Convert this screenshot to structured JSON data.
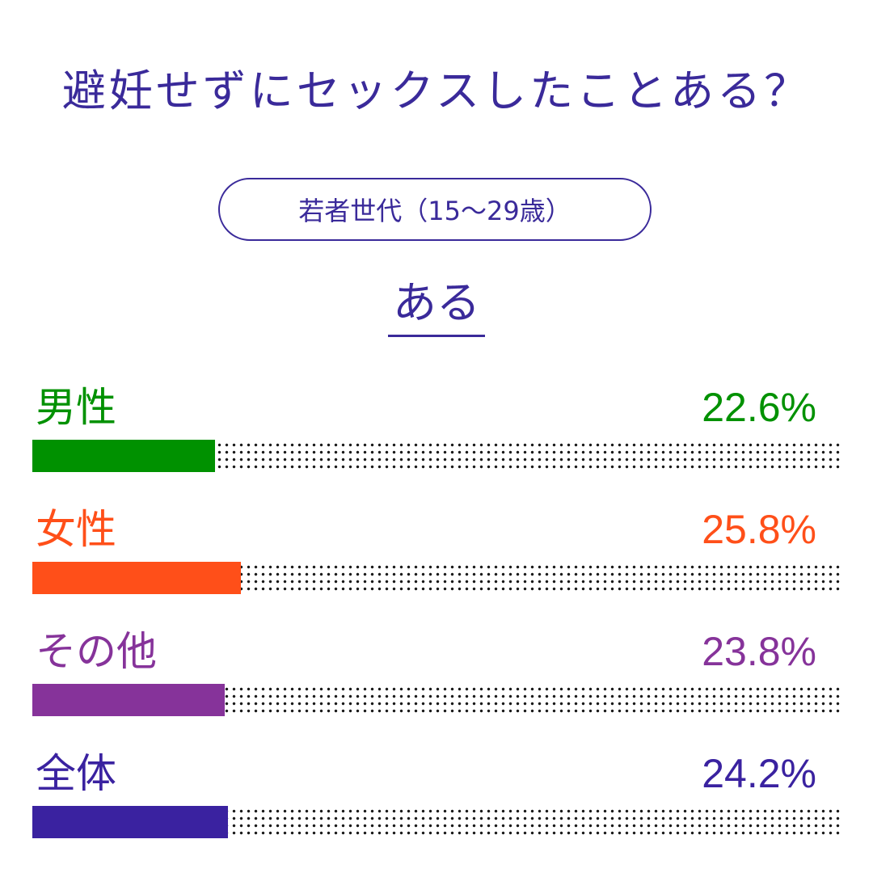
{
  "title": "避妊せずにセックスしたことある？",
  "subtitle": "若者世代（15～29歳）",
  "answer": "ある",
  "chart_data": {
    "type": "bar",
    "orientation": "horizontal",
    "title": "避妊せずにセックスしたことある？",
    "subtitle": "若者世代（15～29歳）",
    "categories": [
      "男性",
      "女性",
      "その他",
      "全体"
    ],
    "values": [
      22.6,
      25.8,
      23.8,
      24.2
    ],
    "value_labels": [
      "22.6%",
      "25.8%",
      "23.8%",
      "24.2%"
    ],
    "colors": [
      "#009100",
      "#ff4f19",
      "#86339a",
      "#3a22a0"
    ],
    "xlim": [
      0,
      100
    ],
    "unit": "%"
  }
}
